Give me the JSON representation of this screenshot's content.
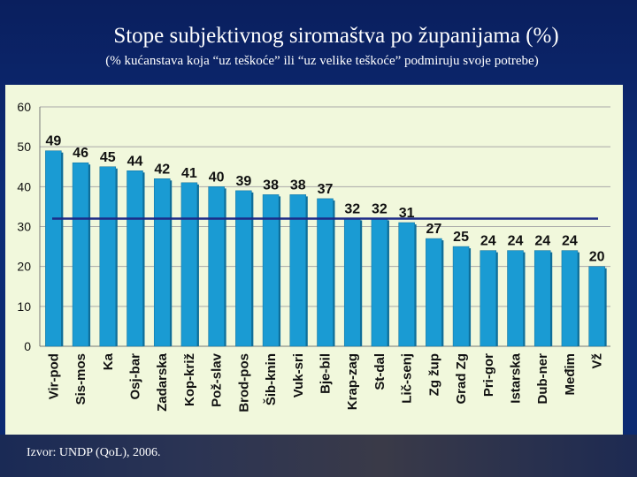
{
  "header": {
    "title": "Stope subjektivnog siromaštva po županijama (%)",
    "subtitle": "(% kućanstava koja “uz teškoće” ili “uz velike teškoće” podmiruju svoje potrebe)"
  },
  "footer": {
    "source": "Izvor: UNDP (QoL), 2006."
  },
  "colors": {
    "bar": "#1a9bd3",
    "bar_dark": "#0f6e99",
    "average_line": "#1c2a86",
    "panel": "#f1f8dc"
  },
  "chart_data": {
    "type": "bar",
    "title": "Stope subjektivnog siromaštva po županijama (%)",
    "xlabel": "",
    "ylabel": "",
    "ylim": [
      0,
      60
    ],
    "yticks": [
      0,
      10,
      20,
      30,
      40,
      50,
      60
    ],
    "grid": true,
    "categories": [
      "Vir-pod",
      "Sis-mos",
      "Ka",
      "Osj-bar",
      "Zadarska",
      "Kop-križ",
      "Pož-slav",
      "Brod-pos",
      "Šib-knin",
      "Vuk-sri",
      "Bje-bil",
      "Krap-zag",
      "St-dal",
      "Lič-senj",
      "Zg žup",
      "Grad Zg",
      "Pri-gor",
      "Istarska",
      "Dub-ner",
      "Međim",
      "Vž"
    ],
    "values": [
      49,
      46,
      45,
      44,
      42,
      41,
      40,
      39,
      38,
      38,
      37,
      32,
      32,
      31,
      27,
      25,
      24,
      24,
      24,
      24,
      20
    ],
    "reference_line": 32
  }
}
